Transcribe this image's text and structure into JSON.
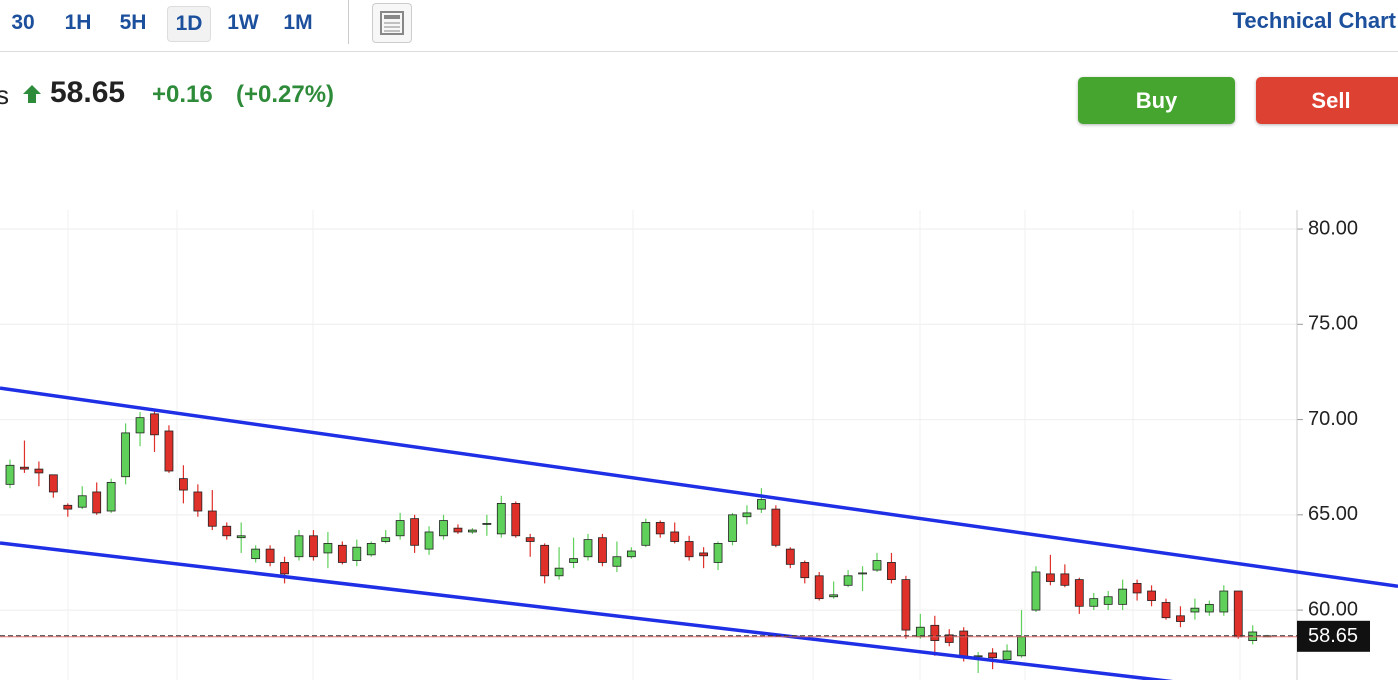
{
  "header": {
    "timeframes": [
      "30",
      "1H",
      "5H",
      "1D",
      "1W",
      "1M"
    ],
    "chart_link": "Technical Chart",
    "partial_name": "s",
    "price": "58.65",
    "change": "+0.16",
    "change_pct": "(+0.27%)",
    "buttons": [
      "Buy",
      "Sell"
    ]
  },
  "chart_data": {
    "type": "candlestick",
    "up_color": "#5fd15a",
    "down_color": "#e0302a",
    "ylim": [
      56.33,
      81.0
    ],
    "yticks": [
      {
        "value": 60,
        "label": "60.00"
      },
      {
        "value": 65,
        "label": "65.00"
      },
      {
        "value": 70,
        "label": "70.00"
      },
      {
        "value": 75,
        "label": "75.00"
      },
      {
        "value": 80,
        "label": "80.00"
      }
    ],
    "grid": true,
    "open": [
      66.6,
      67.5,
      67.4,
      67.1,
      65.5,
      65.4,
      66.2,
      65.2,
      67.0,
      69.3,
      70.3,
      69.4,
      66.9,
      66.2,
      65.2,
      64.4,
      63.8,
      62.7,
      63.2,
      62.5,
      62.8,
      63.9,
      63.0,
      63.4,
      62.6,
      62.9,
      63.6,
      63.9,
      64.8,
      63.2,
      63.9,
      64.3,
      64.1,
      64.5,
      64.0,
      65.6,
      63.8,
      63.4,
      61.8,
      62.5,
      62.8,
      63.8,
      62.3,
      62.8,
      63.4,
      64.6,
      64.1,
      63.6,
      63.0,
      62.5,
      63.6,
      64.9,
      65.3,
      65.3,
      63.2,
      62.5,
      61.8,
      60.7,
      61.3,
      61.9,
      62.1,
      62.5,
      61.6,
      58.6,
      59.2,
      58.7,
      58.9,
      57.55,
      57.75,
      57.4,
      57.6,
      60.0,
      61.9,
      61.9,
      61.6,
      60.2,
      60.3,
      60.3,
      61.4,
      61.0,
      60.4,
      59.7,
      59.9,
      59.9,
      59.9,
      61.0,
      58.4,
      58.6
    ],
    "high": [
      67.9,
      68.9,
      67.8,
      67.1,
      65.6,
      66.5,
      66.7,
      66.9,
      69.8,
      70.4,
      70.5,
      69.7,
      67.6,
      66.6,
      66.3,
      64.6,
      64.6,
      63.4,
      63.4,
      62.8,
      64.2,
      64.2,
      64.1,
      63.6,
      63.7,
      63.6,
      64.2,
      65.1,
      65.0,
      64.4,
      65.0,
      64.5,
      64.3,
      65.0,
      66.0,
      65.7,
      64.0,
      63.5,
      63.3,
      63.8,
      64.0,
      64.0,
      63.6,
      63.3,
      64.8,
      64.7,
      64.6,
      63.9,
      63.3,
      63.6,
      65.1,
      65.5,
      66.4,
      65.5,
      63.3,
      62.6,
      62.0,
      61.5,
      62.1,
      62.3,
      63.0,
      63.0,
      61.8,
      59.8,
      59.7,
      59.0,
      59.1,
      57.8,
      58.0,
      58.2,
      60.0,
      62.3,
      62.9,
      62.4,
      61.7,
      60.9,
      61.0,
      61.6,
      61.6,
      61.3,
      60.6,
      60.2,
      60.6,
      60.5,
      61.3,
      61.0,
      59.2,
      58.7
    ],
    "low": [
      66.4,
      67.2,
      66.5,
      65.9,
      64.9,
      65.3,
      65.0,
      65.1,
      66.6,
      68.6,
      68.3,
      67.2,
      65.6,
      64.9,
      64.2,
      63.7,
      63.0,
      62.5,
      62.3,
      61.4,
      62.6,
      62.6,
      62.2,
      62.4,
      62.3,
      62.8,
      63.5,
      63.7,
      63.0,
      62.9,
      63.7,
      64.0,
      64.0,
      63.9,
      63.8,
      63.8,
      62.8,
      61.4,
      61.6,
      62.2,
      62.6,
      62.3,
      62.0,
      62.7,
      63.3,
      63.8,
      63.5,
      62.6,
      62.2,
      62.1,
      63.4,
      64.5,
      65.1,
      63.3,
      62.2,
      61.4,
      60.5,
      60.6,
      61.2,
      61.0,
      62.0,
      61.4,
      58.5,
      58.5,
      57.6,
      58.1,
      57.3,
      56.7,
      56.9,
      57.2,
      57.5,
      59.9,
      61.3,
      61.2,
      59.8,
      60.0,
      60.0,
      60.0,
      60.5,
      60.2,
      59.5,
      59.1,
      59.5,
      59.7,
      59.7,
      58.5,
      58.2,
      58.6
    ],
    "close": [
      67.6,
      67.4,
      67.2,
      66.2,
      65.3,
      66.0,
      65.1,
      66.7,
      69.3,
      70.1,
      69.2,
      67.3,
      66.3,
      65.2,
      64.4,
      63.9,
      63.9,
      63.2,
      62.5,
      61.9,
      63.9,
      62.8,
      63.5,
      62.5,
      63.3,
      63.5,
      63.8,
      64.7,
      63.4,
      64.1,
      64.7,
      64.1,
      64.2,
      64.55,
      65.6,
      63.9,
      63.6,
      61.8,
      62.2,
      62.7,
      63.7,
      62.5,
      62.8,
      63.1,
      64.6,
      64.0,
      63.6,
      62.8,
      62.85,
      63.5,
      65.0,
      65.1,
      65.8,
      63.4,
      62.4,
      61.7,
      60.6,
      60.8,
      61.8,
      61.95,
      62.6,
      61.6,
      58.95,
      59.1,
      58.4,
      58.3,
      57.5,
      57.6,
      57.5,
      57.85,
      58.6,
      62.0,
      61.5,
      61.3,
      60.2,
      60.6,
      60.7,
      61.1,
      60.9,
      60.5,
      59.6,
      59.4,
      60.1,
      60.3,
      61.0,
      58.6,
      58.85,
      58.65
    ],
    "trendlines": [
      {
        "color": "#1f2fe6",
        "values": [
          71.65,
          62.0
        ]
      },
      {
        "color": "#1f2fe6",
        "values": [
          63.52,
          55.47
        ]
      }
    ],
    "last_price": {
      "value": 58.65,
      "label": "58.65"
    }
  }
}
